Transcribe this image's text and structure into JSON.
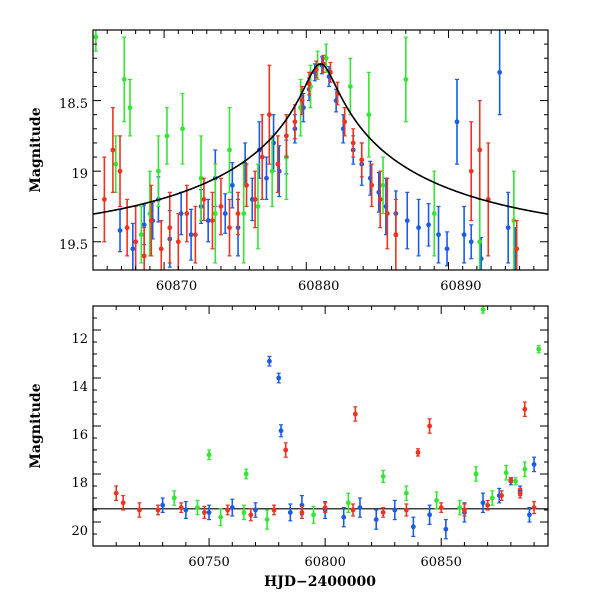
{
  "chart_data": [
    {
      "type": "scatter",
      "ylabel": "Magnitude",
      "xlabel": "",
      "xlim": [
        60865,
        60897
      ],
      "ylim": [
        19.7,
        18.0
      ],
      "y_inverted": true,
      "x_ticks": [
        60870,
        60880,
        60890
      ],
      "x_tick_labels": [
        "60870",
        "60880",
        "60890"
      ],
      "y_ticks": [
        18.5,
        19,
        19.5
      ],
      "y_tick_labels": [
        "18.5",
        "19",
        "19.5"
      ],
      "series": [
        {
          "color": "#1a5ce6",
          "points": [
            [
              60866.9,
              19.42,
              0.15
            ],
            [
              60867.8,
              19.55,
              0.18
            ],
            [
              60868.6,
              19.38,
              0.14
            ],
            [
              60869.2,
              19.35,
              0.13
            ],
            [
              60869.6,
              19.2,
              0.16
            ],
            [
              60870.4,
              19.48,
              0.2
            ],
            [
              60871.2,
              19.3,
              0.15
            ],
            [
              60871.9,
              19.45,
              0.18
            ],
            [
              60872.6,
              19.25,
              0.12
            ],
            [
              60873.1,
              19.35,
              0.15
            ],
            [
              60873.6,
              19.05,
              0.2
            ],
            [
              60874.3,
              19.3,
              0.14
            ],
            [
              60874.8,
              19.1,
              0.16
            ],
            [
              60875.2,
              19.4,
              0.2
            ],
            [
              60875.7,
              18.95,
              0.15
            ],
            [
              60876.2,
              19.2,
              0.15
            ],
            [
              60876.7,
              18.85,
              0.2
            ],
            [
              60877.2,
              19.05,
              0.15
            ],
            [
              60877.7,
              18.8,
              0.2
            ],
            [
              60878.1,
              19.0,
              0.18
            ],
            [
              60878.6,
              18.9,
              0.12
            ],
            [
              60879.2,
              18.7,
              0.1
            ],
            [
              60879.8,
              18.55,
              0.1
            ],
            [
              60880.2,
              18.42,
              0.08
            ],
            [
              60880.6,
              18.3,
              0.06
            ],
            [
              60881.1,
              18.25,
              0.06
            ],
            [
              60881.6,
              18.33,
              0.07
            ],
            [
              60882.1,
              18.5,
              0.08
            ],
            [
              60882.6,
              18.7,
              0.1
            ],
            [
              60883.3,
              18.85,
              0.1
            ],
            [
              60883.9,
              18.95,
              0.15
            ],
            [
              60884.5,
              19.05,
              0.12
            ],
            [
              60885.1,
              19.15,
              0.14
            ],
            [
              60885.6,
              19.25,
              0.2
            ],
            [
              60886.3,
              19.3,
              0.16
            ],
            [
              60887.1,
              19.35,
              0.2
            ],
            [
              60887.9,
              19.4,
              0.2
            ],
            [
              60888.6,
              19.38,
              0.15
            ],
            [
              60889.3,
              19.45,
              0.2
            ],
            [
              60889.9,
              19.55,
              0.12
            ],
            [
              60890.6,
              18.65,
              0.3
            ],
            [
              60891.1,
              19.45,
              0.2
            ],
            [
              60891.6,
              19.5,
              0.12
            ],
            [
              60892.3,
              19.62,
              0.15
            ],
            [
              60893.6,
              18.3,
              0.3
            ],
            [
              60894.2,
              19.4,
              0.25
            ],
            [
              60894.7,
              19.6,
              0.2
            ]
          ]
        },
        {
          "color": "#33e633",
          "points": [
            [
              60865.2,
              18.05,
              0.1
            ],
            [
              60866.6,
              18.95,
              0.2
            ],
            [
              60867.2,
              18.35,
              0.3
            ],
            [
              60867.6,
              18.55,
              0.2
            ],
            [
              60868.4,
              19.45,
              0.2
            ],
            [
              60869.0,
              19.3,
              0.3
            ],
            [
              60869.6,
              19.0,
              0.25
            ],
            [
              60870.2,
              18.75,
              0.2
            ],
            [
              60871.3,
              18.7,
              0.25
            ],
            [
              60872.6,
              19.05,
              0.3
            ],
            [
              60873.6,
              19.3,
              0.35
            ],
            [
              60874.6,
              18.85,
              0.3
            ],
            [
              60875.6,
              19.3,
              0.35
            ],
            [
              60876.6,
              19.25,
              0.3
            ],
            [
              60877.6,
              19.0,
              0.25
            ],
            [
              60878.6,
              18.9,
              0.3
            ],
            [
              60879.6,
              18.55,
              0.2
            ],
            [
              60880.3,
              18.4,
              0.15
            ],
            [
              60880.8,
              18.25,
              0.1
            ],
            [
              60881.4,
              18.2,
              0.1
            ],
            [
              60883.1,
              18.4,
              0.2
            ],
            [
              60884.4,
              18.6,
              0.3
            ],
            [
              60885.4,
              19.1,
              0.2
            ],
            [
              60887.0,
              18.35,
              0.3
            ],
            [
              60889.0,
              19.3,
              0.3
            ],
            [
              60892.2,
              19.5,
              0.3
            ],
            [
              60894.6,
              19.35,
              0.35
            ]
          ]
        },
        {
          "color": "#ee3322",
          "points": [
            [
              60865.8,
              19.2,
              0.3
            ],
            [
              60866.4,
              18.85,
              0.3
            ],
            [
              60866.9,
              19.0,
              0.25
            ],
            [
              60867.4,
              19.4,
              0.2
            ],
            [
              60868.0,
              19.5,
              0.25
            ],
            [
              60868.6,
              19.6,
              0.2
            ],
            [
              60869.1,
              19.35,
              0.25
            ],
            [
              60869.8,
              19.55,
              0.2
            ],
            [
              60870.4,
              19.4,
              0.25
            ],
            [
              60871.0,
              19.5,
              0.2
            ],
            [
              60871.6,
              19.3,
              0.2
            ],
            [
              60872.2,
              19.45,
              0.2
            ],
            [
              60872.8,
              19.2,
              0.15
            ],
            [
              60873.4,
              19.35,
              0.2
            ],
            [
              60874.0,
              19.25,
              0.2
            ],
            [
              60874.6,
              19.4,
              0.2
            ],
            [
              60875.2,
              19.3,
              0.15
            ],
            [
              60875.8,
              19.1,
              0.15
            ],
            [
              60876.4,
              19.2,
              0.2
            ],
            [
              60876.9,
              18.9,
              0.3
            ],
            [
              60877.4,
              18.6,
              0.35
            ],
            [
              60878.0,
              18.95,
              0.2
            ],
            [
              60878.6,
              18.75,
              0.15
            ],
            [
              60879.2,
              18.65,
              0.12
            ],
            [
              60879.7,
              18.5,
              0.1
            ],
            [
              60880.2,
              18.38,
              0.08
            ],
            [
              60880.7,
              18.28,
              0.06
            ],
            [
              60881.2,
              18.24,
              0.06
            ],
            [
              60881.7,
              18.3,
              0.07
            ],
            [
              60882.2,
              18.45,
              0.08
            ],
            [
              60882.7,
              18.65,
              0.1
            ],
            [
              60883.3,
              18.8,
              0.1
            ],
            [
              60883.9,
              18.92,
              0.12
            ],
            [
              60884.6,
              19.1,
              0.15
            ],
            [
              60885.2,
              19.2,
              0.2
            ],
            [
              60885.7,
              19.3,
              0.25
            ],
            [
              60886.3,
              19.45,
              0.25
            ],
            [
              60891.6,
              19.0,
              0.35
            ],
            [
              60892.2,
              18.85,
              0.35
            ],
            [
              60892.8,
              19.2,
              0.4
            ],
            [
              60894.8,
              19.55,
              0.2
            ]
          ]
        }
      ],
      "model_curve": {
        "color": "#000000",
        "t0": 60881.0,
        "peak_mag": 18.24,
        "base_mag": 19.48,
        "u0": 0.05,
        "tE": 20.0
      }
    },
    {
      "type": "scatter",
      "ylabel": "Magnitude",
      "xlabel": "HJD−2400000",
      "xlim": [
        60700,
        60896
      ],
      "ylim": [
        21.0,
        11.0
      ],
      "y_inverted": true,
      "x_ticks": [
        60750,
        60800,
        60850
      ],
      "x_tick_labels": [
        "60750",
        "60800",
        "60850"
      ],
      "y_ticks": [
        12,
        14,
        16,
        18,
        20
      ],
      "y_tick_labels": [
        "12",
        "14",
        "16",
        "18",
        "20"
      ],
      "baseline_line": 19.45,
      "series": [
        {
          "color": "#1a5ce6",
          "points": [
            [
              60776,
              13.3,
              0.2
            ],
            [
              60780,
              14.0,
              0.2
            ],
            [
              60781,
              16.2,
              0.25
            ],
            [
              60730,
              19.3,
              0.3
            ],
            [
              60740,
              19.5,
              0.35
            ],
            [
              60750,
              19.6,
              0.3
            ],
            [
              60760,
              19.4,
              0.35
            ],
            [
              60770,
              19.5,
              0.3
            ],
            [
              60785,
              19.6,
              0.35
            ],
            [
              60790,
              19.3,
              0.4
            ],
            [
              60800,
              19.5,
              0.35
            ],
            [
              60808,
              19.8,
              0.4
            ],
            [
              60815,
              19.4,
              0.4
            ],
            [
              60822,
              19.9,
              0.4
            ],
            [
              60830,
              19.5,
              0.4
            ],
            [
              60838,
              20.2,
              0.4
            ],
            [
              60845,
              19.7,
              0.4
            ],
            [
              60852,
              20.3,
              0.4
            ],
            [
              60860,
              19.6,
              0.4
            ],
            [
              60868,
              19.2,
              0.4
            ],
            [
              60875,
              18.9,
              0.3
            ],
            [
              60880,
              18.3,
              0.15
            ],
            [
              60884,
              18.7,
              0.2
            ],
            [
              60888,
              19.7,
              0.3
            ],
            [
              60890,
              17.6,
              0.3
            ]
          ]
        },
        {
          "color": "#33e633",
          "points": [
            [
              60868,
              11.15,
              0.15
            ],
            [
              60892,
              12.8,
              0.15
            ],
            [
              60750,
              17.2,
              0.2
            ],
            [
              60766,
              18.0,
              0.2
            ],
            [
              60825,
              18.1,
              0.25
            ],
            [
              60865,
              18.0,
              0.3
            ],
            [
              60878,
              17.95,
              0.3
            ],
            [
              60886,
              17.8,
              0.3
            ],
            [
              60735,
              19.0,
              0.3
            ],
            [
              60745,
              19.4,
              0.3
            ],
            [
              60755,
              19.8,
              0.35
            ],
            [
              60765,
              19.6,
              0.3
            ],
            [
              60775,
              19.9,
              0.4
            ],
            [
              60795,
              19.7,
              0.35
            ],
            [
              60810,
              19.2,
              0.4
            ],
            [
              60835,
              18.8,
              0.3
            ],
            [
              60848,
              19.1,
              0.35
            ],
            [
              60858,
              19.4,
              0.3
            ],
            [
              60872,
              19.0,
              0.3
            ],
            [
              60882,
              18.3,
              0.15
            ]
          ]
        },
        {
          "color": "#ee3322",
          "points": [
            [
              60710,
              18.8,
              0.3
            ],
            [
              60713,
              19.2,
              0.3
            ],
            [
              60720,
              19.5,
              0.3
            ],
            [
              60783,
              17.0,
              0.3
            ],
            [
              60813,
              15.5,
              0.3
            ],
            [
              60845,
              16.0,
              0.3
            ],
            [
              60840,
              17.1,
              0.15
            ],
            [
              60886,
              15.3,
              0.3
            ],
            [
              60728,
              19.5,
              0.2
            ],
            [
              60738,
              19.4,
              0.2
            ],
            [
              60748,
              19.6,
              0.25
            ],
            [
              60758,
              19.5,
              0.2
            ],
            [
              60768,
              19.7,
              0.25
            ],
            [
              60778,
              19.5,
              0.2
            ],
            [
              60790,
              19.6,
              0.25
            ],
            [
              60800,
              19.4,
              0.2
            ],
            [
              60812,
              19.5,
              0.25
            ],
            [
              60825,
              19.6,
              0.2
            ],
            [
              60835,
              19.5,
              0.25
            ],
            [
              60850,
              19.4,
              0.2
            ],
            [
              60860,
              19.5,
              0.25
            ],
            [
              60870,
              19.3,
              0.2
            ],
            [
              60876,
              18.9,
              0.2
            ],
            [
              60880,
              18.25,
              0.1
            ],
            [
              60884,
              18.8,
              0.2
            ],
            [
              60890,
              19.4,
              0.25
            ]
          ]
        }
      ]
    }
  ]
}
